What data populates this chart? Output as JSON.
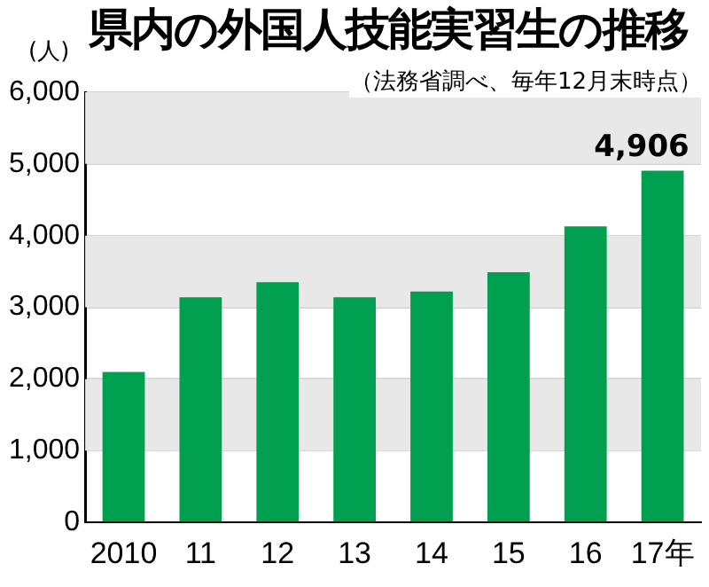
{
  "chart_data": {
    "type": "bar",
    "title": "県内の外国人技能実習生の推移",
    "subtitle": "（法務省調べ、毎年12月末時点）",
    "ylabel": "(人)",
    "categories": [
      "2010",
      "11",
      "12",
      "13",
      "14",
      "15",
      "16",
      "17年"
    ],
    "values": [
      2100,
      3140,
      3350,
      3140,
      3220,
      3490,
      4130,
      4906
    ],
    "value_labels": [
      null,
      null,
      null,
      null,
      null,
      null,
      null,
      "4,906"
    ],
    "color": "#00a050",
    "ylim": [
      0,
      6000
    ],
    "yticks": [
      {
        "value": 0,
        "label": "0"
      },
      {
        "value": 1000,
        "label": "1,000"
      },
      {
        "value": 2000,
        "label": "2,000"
      },
      {
        "value": 3000,
        "label": "3,000"
      },
      {
        "value": 4000,
        "label": "4,000"
      },
      {
        "value": 5000,
        "label": "5,000"
      },
      {
        "value": 6000,
        "label": "6,000"
      }
    ],
    "grid": "y"
  }
}
